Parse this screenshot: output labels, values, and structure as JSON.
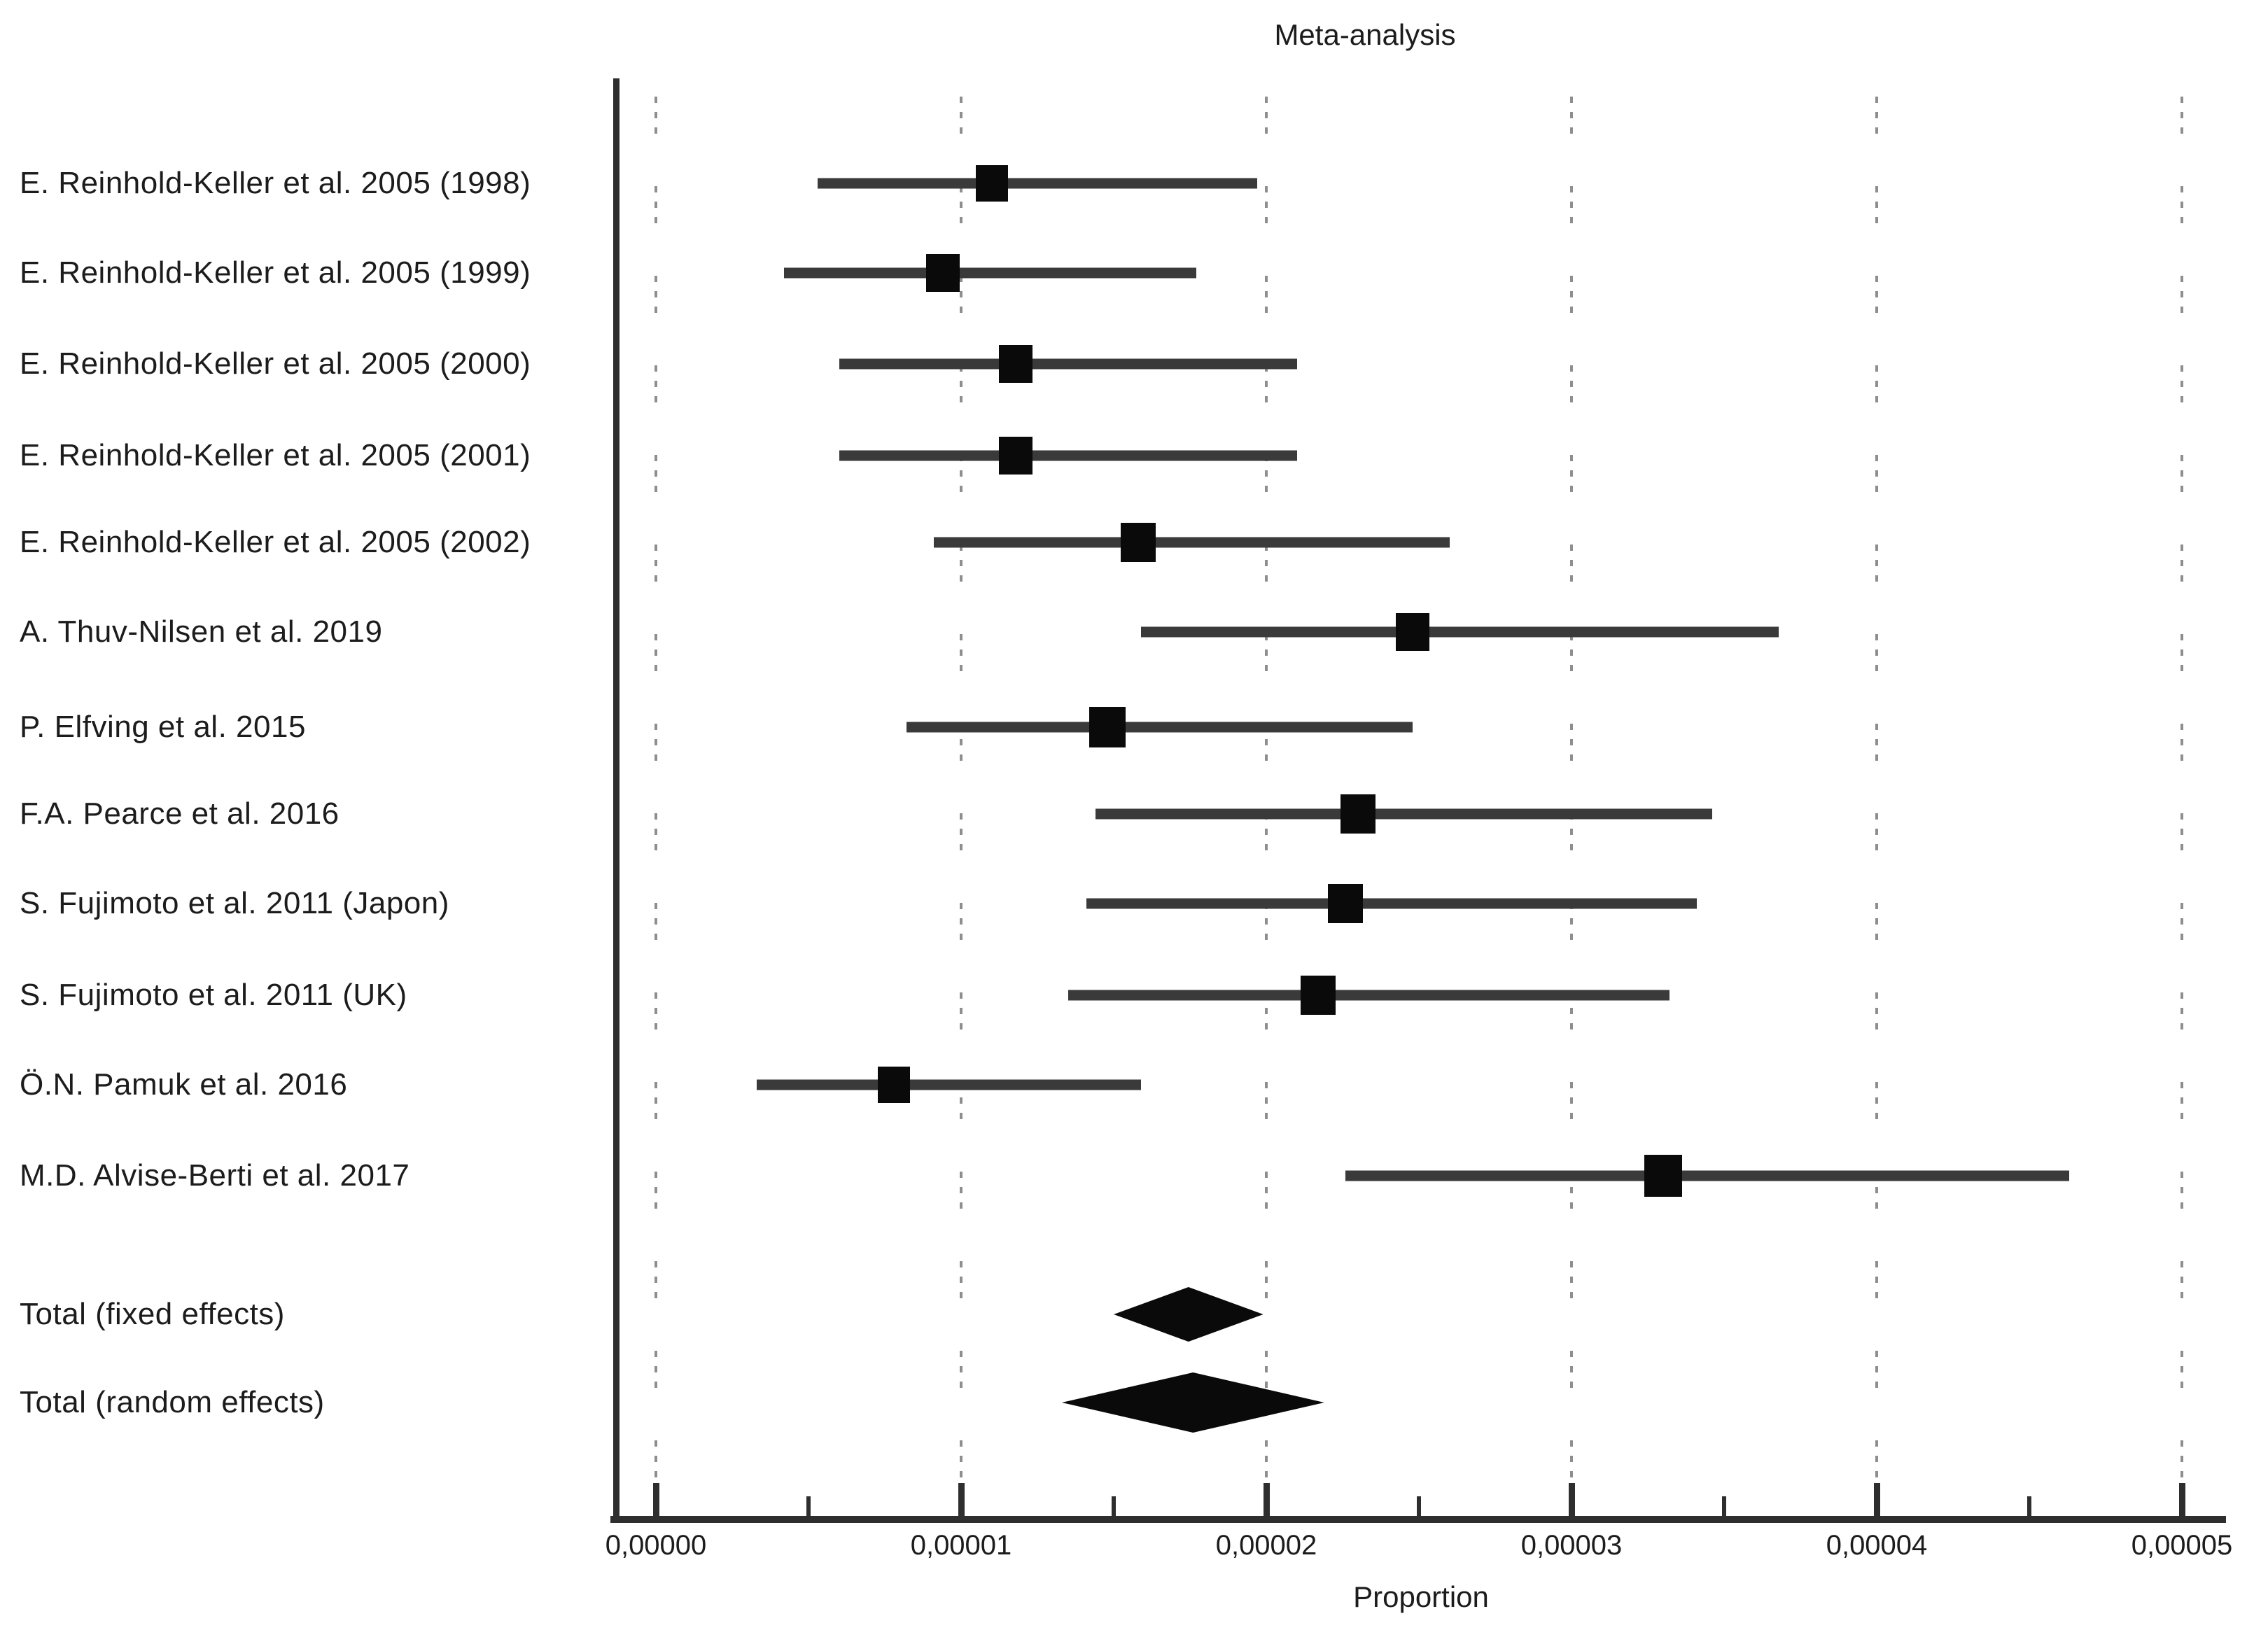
{
  "title": "Meta-analysis",
  "xlabel": "Proportion",
  "colors": {
    "text": "#1c1c1c",
    "axis": "#2e2e2e",
    "ci_bar": "#3a3a3a",
    "marker": "#0a0a0a",
    "diamond": "#0a0a0a",
    "gridline": "#8e8e8e"
  },
  "chart_data": {
    "type": "forest",
    "title": "Meta-analysis",
    "xlabel": "Proportion",
    "x_axis": {
      "min": 0,
      "max": 5e-05,
      "major_tick_step": 1e-05,
      "minor_tick_step": 5e-06,
      "decimal_separator": ",",
      "tick_labels": [
        "0,00000",
        "0,00001",
        "0,00002",
        "0,00003",
        "0,00004",
        "0,00005"
      ],
      "gridlines": "dashed-vertical-at-major-ticks"
    },
    "studies": [
      {
        "label": "E. Reinhold-Keller et al. 2005 (1998)",
        "estimate": 1.1e-05,
        "ci_low": 5.3e-06,
        "ci_high": 1.97e-05,
        "marker_size": 46
      },
      {
        "label": "E. Reinhold-Keller et al. 2005 (1999)",
        "estimate": 9.4e-06,
        "ci_low": 4.2e-06,
        "ci_high": 1.77e-05,
        "marker_size": 48
      },
      {
        "label": "E. Reinhold-Keller et al. 2005 (2000)",
        "estimate": 1.18e-05,
        "ci_low": 6e-06,
        "ci_high": 2.1e-05,
        "marker_size": 48
      },
      {
        "label": "E. Reinhold-Keller et al. 2005 (2001)",
        "estimate": 1.18e-05,
        "ci_low": 6e-06,
        "ci_high": 2.1e-05,
        "marker_size": 48
      },
      {
        "label": "E. Reinhold-Keller et al. 2005 (2002)",
        "estimate": 1.58e-05,
        "ci_low": 9.1e-06,
        "ci_high": 2.6e-05,
        "marker_size": 50
      },
      {
        "label": "A. Thuv-Nilsen et al. 2019",
        "estimate": 2.48e-05,
        "ci_low": 1.59e-05,
        "ci_high": 3.68e-05,
        "marker_size": 48
      },
      {
        "label": "P. Elfving et al. 2015",
        "estimate": 1.48e-05,
        "ci_low": 8.2e-06,
        "ci_high": 2.48e-05,
        "marker_size": 52
      },
      {
        "label": "F.A. Pearce et al. 2016",
        "estimate": 2.3e-05,
        "ci_low": 1.44e-05,
        "ci_high": 3.46e-05,
        "marker_size": 50
      },
      {
        "label": "S. Fujimoto et al. 2011 (Japon)",
        "estimate": 2.26e-05,
        "ci_low": 1.41e-05,
        "ci_high": 3.41e-05,
        "marker_size": 50
      },
      {
        "label": "S. Fujimoto et al. 2011 (UK)",
        "estimate": 2.17e-05,
        "ci_low": 1.35e-05,
        "ci_high": 3.32e-05,
        "marker_size": 50
      },
      {
        "label": "Ö.N. Pamuk et al. 2016",
        "estimate": 7.8e-06,
        "ci_low": 3.3e-06,
        "ci_high": 1.59e-05,
        "marker_size": 46
      },
      {
        "label": "M.D. Alvise-Berti et al. 2017",
        "estimate": 3.3e-05,
        "ci_low": 2.26e-05,
        "ci_high": 4.63e-05,
        "marker_size": 54
      }
    ],
    "totals": [
      {
        "label": "Total (fixed effects)",
        "estimate": 1.74e-05,
        "ci_low": 1.5e-05,
        "ci_high": 1.99e-05,
        "diamond_height": 78
      },
      {
        "label": "Total (random effects)",
        "estimate": 1.75e-05,
        "ci_low": 1.33e-05,
        "ci_high": 2.19e-05,
        "diamond_height": 86
      }
    ]
  }
}
